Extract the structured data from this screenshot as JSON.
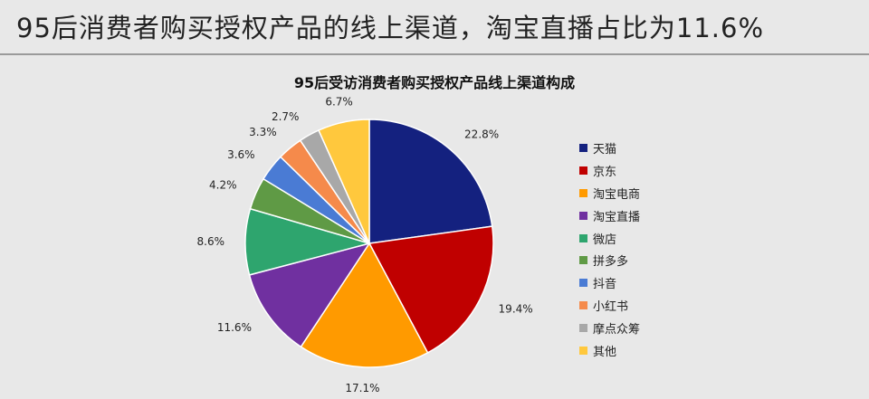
{
  "header": {
    "title": "95后消费者购买授权产品的线上渠道，淘宝直播占比为11.6%"
  },
  "chart_data": {
    "type": "pie",
    "title": "95后受访消费者购买授权产品线上渠道构成",
    "categories": [
      "天猫",
      "京东",
      "淘宝电商",
      "淘宝直播",
      "微店",
      "拼多多",
      "抖音",
      "小红书",
      "摩点众筹",
      "其他"
    ],
    "values": [
      22.8,
      19.4,
      17.1,
      11.6,
      8.6,
      4.2,
      3.6,
      3.3,
      2.7,
      6.7
    ],
    "labels": [
      "22.8%",
      "19.4%",
      "17.1%",
      "11.6%",
      "8.6%",
      "4.2%",
      "3.6%",
      "3.3%",
      "2.7%",
      "6.7%"
    ],
    "colors": [
      "#14217f",
      "#c00000",
      "#ff9a00",
      "#7030a0",
      "#2ea56e",
      "#5f9a45",
      "#4a7bd4",
      "#f58a4b",
      "#a8a8a8",
      "#ffc83d"
    ],
    "legend_position": "right"
  }
}
